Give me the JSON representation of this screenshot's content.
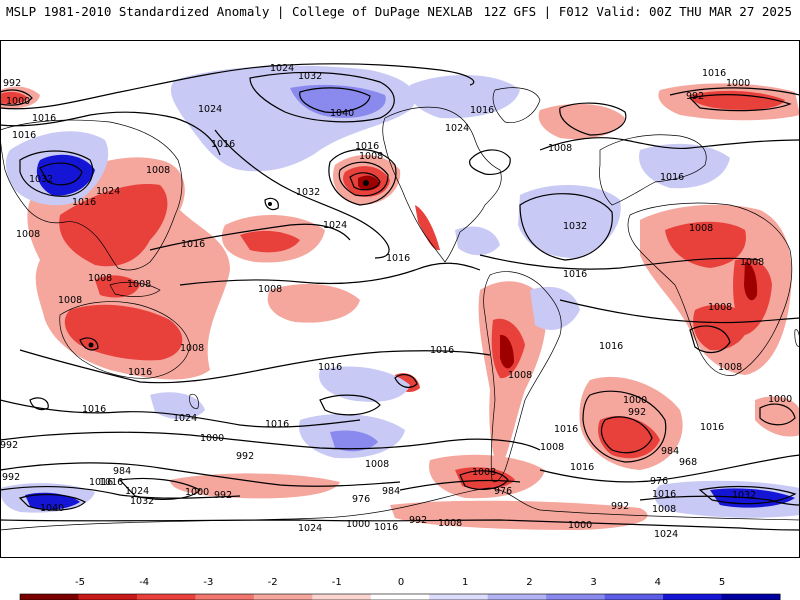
{
  "header": {
    "left": "MSLP 1981-2010 Standardized Anomaly | College of DuPage NEXLAB",
    "right": "12Z GFS | F012 Valid: 00Z THU MAR 27 2025"
  },
  "colors": {
    "strong_negative": "#9e0000",
    "negative": "#e8413c",
    "weak_negative": "#f5a69d",
    "weak_positive": "#c9c9f5",
    "positive": "#8a8aee",
    "strong_positive": "#1515d6",
    "land_border": "#000000",
    "isobar": "#000000"
  },
  "colorbar": {
    "ticks": [
      "-5",
      "-4",
      "-3",
      "-2",
      "-1",
      "0",
      "1",
      "2",
      "3",
      "4",
      "5"
    ],
    "colors": [
      "#7a0000",
      "#c81a1a",
      "#e8413c",
      "#f0766e",
      "#f5a69d",
      "#fbd3cf",
      "#ffffff",
      "#dcdcfb",
      "#b3b3f4",
      "#8a8aee",
      "#5c5ce6",
      "#1515d6",
      "#0000a0"
    ]
  },
  "isobar_labels": [
    "1024",
    "1032",
    "1016",
    "992",
    "1000",
    "1016",
    "1024",
    "1040",
    "1016",
    "1008",
    "1016",
    "1024",
    "1016",
    "992",
    "1008",
    "1000",
    "1016",
    "1032",
    "1008",
    "1024",
    "1016",
    "1008",
    "1024",
    "1032",
    "1016",
    "1008",
    "1016",
    "1008",
    "1008",
    "1008",
    "1032",
    "1016",
    "1008",
    "1008",
    "1008",
    "1016",
    "1008",
    "1016",
    "1016",
    "1008",
    "1008",
    "1016",
    "1024",
    "1016",
    "1016",
    "1008",
    "1000",
    "992",
    "1000",
    "992",
    "1008",
    "984",
    "968",
    "984",
    "1016",
    "992",
    "976",
    "1016",
    "1008",
    "1016",
    "1024",
    "1032",
    "992",
    "1040",
    "1000",
    "992",
    "976",
    "984",
    "976",
    "992",
    "1008",
    "1000",
    "1024",
    "1016",
    "1000",
    "992",
    "1016",
    "1024",
    "1032",
    "1016",
    "1008",
    "1000",
    "1016",
    "1016"
  ]
}
